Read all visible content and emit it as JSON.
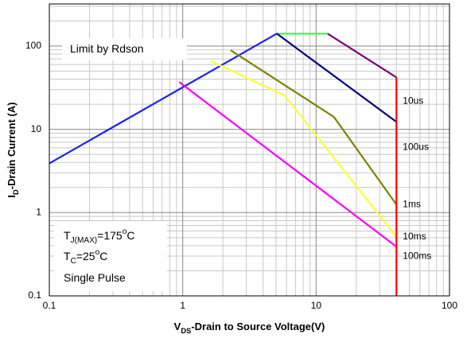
{
  "chart_data": {
    "type": "line",
    "xlog": true,
    "ylog": true,
    "grid": true,
    "xlim": [
      0.1,
      100
    ],
    "ylim": [
      0.1,
      320
    ],
    "xticks": [
      0.1,
      1,
      10,
      100
    ],
    "yticks": [
      0.1,
      1,
      10,
      100
    ],
    "xlabel": [
      {
        "text": "V"
      },
      {
        "text": "DS",
        "sub": true
      },
      {
        "text": "-Drain to Source Voltage(V)"
      }
    ],
    "ylabel": [
      {
        "text": "I"
      },
      {
        "text": "D",
        "sub": true
      },
      {
        "text": "-Drain Current (A)"
      }
    ],
    "annotations": [
      [
        {
          "text": "Limit by Rdson"
        }
      ],
      [
        {
          "text": "T"
        },
        {
          "text": "J(MAX)",
          "sub": true
        },
        {
          "text": "=175"
        },
        {
          "text": "o",
          "sup": true
        },
        {
          "text": "C"
        }
      ],
      [
        {
          "text": "T"
        },
        {
          "text": "C",
          "sub": true
        },
        {
          "text": "=25"
        },
        {
          "text": "o",
          "sup": true
        },
        {
          "text": "C"
        }
      ],
      [
        {
          "text": "Single Pulse"
        }
      ]
    ],
    "series": [
      {
        "color": "#1f1fff",
        "x": [
          0.1,
          5.07
        ],
        "values": [
          3.9,
          141
        ]
      },
      {
        "color": "#33ff33",
        "x": [
          5.07,
          12.2
        ],
        "values": [
          141,
          141
        ]
      },
      {
        "name": "10us",
        "color": "#800080",
        "x": [
          12.2,
          40
        ],
        "values": [
          141,
          42
        ]
      },
      {
        "name": "100us",
        "color": "#000080",
        "x": [
          5.07,
          40
        ],
        "values": [
          141,
          12.3
        ]
      },
      {
        "name": "1ms",
        "color": "#808000",
        "x": [
          2.29,
          13.6,
          40
        ],
        "values": [
          89,
          14.1,
          1.25
        ]
      },
      {
        "name": "10ms",
        "color": "#ffff33",
        "x": [
          1.62,
          5.8,
          40
        ],
        "values": [
          66,
          25.5,
          0.51
        ]
      },
      {
        "name": "100ms",
        "color": "#ff00ff",
        "x": [
          0.94,
          40
        ],
        "values": [
          37,
          0.39
        ]
      },
      {
        "color": "#ff0000",
        "x": [
          40,
          40
        ],
        "values": [
          42,
          0.1
        ]
      }
    ]
  }
}
